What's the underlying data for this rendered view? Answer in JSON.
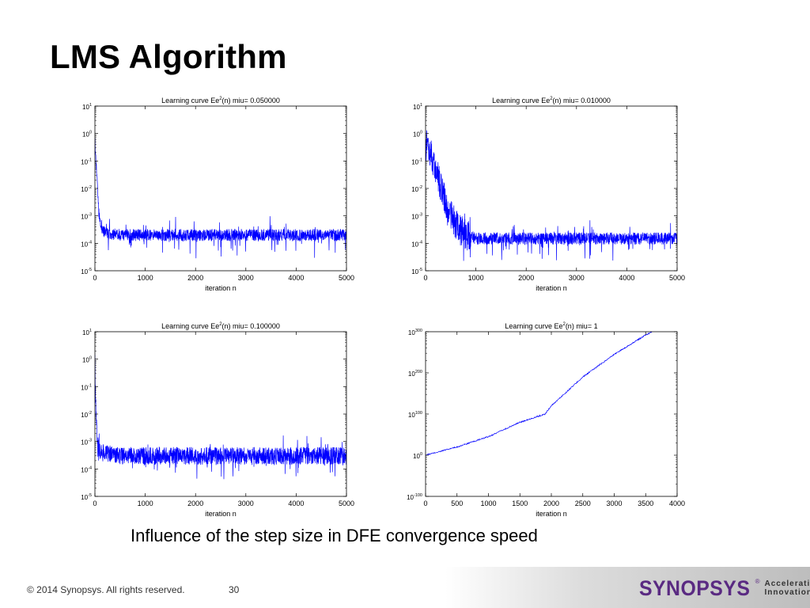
{
  "slide": {
    "title": "LMS Algorithm",
    "caption": "Influence of the step size in DFE convergence speed",
    "footer": {
      "copyright": "© 2014 Synopsys. All rights reserved.",
      "page_number": "30",
      "logo_text": "SYNOPSYS",
      "logo_registered": "®",
      "tagline_line1": "Accelerating",
      "tagline_line2": "Innovation"
    }
  },
  "colors": {
    "curve": "#0000ff",
    "logo": "#5a2a82"
  },
  "chart_data": [
    {
      "type": "line",
      "title_prefix": "Learning curve Ee",
      "title_sup": "2",
      "title_suffix": "(n) miu= 0.050000",
      "xlabel": "iteration n",
      "xlim": [
        0,
        5000
      ],
      "xticks": [
        "0",
        "1000",
        "2000",
        "3000",
        "4000",
        "5000"
      ],
      "ylim_exp": [
        -5,
        1
      ],
      "yscale": "log",
      "yticks": [
        {
          "base": "10",
          "exp": "1"
        },
        {
          "base": "10",
          "exp": "0"
        },
        {
          "base": "10",
          "exp": "-1"
        },
        {
          "base": "10",
          "exp": "-2"
        },
        {
          "base": "10",
          "exp": "-3"
        },
        {
          "base": "10",
          "exp": "-4"
        },
        {
          "base": "10",
          "exp": "-5"
        }
      ],
      "series": [
        {
          "points": [
            [
              1,
              0.5
            ],
            [
              30,
              0.05
            ],
            [
              80,
              0.0012
            ],
            [
              150,
              0.0003
            ],
            [
              300,
              0.0002
            ],
            [
              1000,
              0.0002
            ],
            [
              2000,
              0.0002
            ],
            [
              3000,
              0.0002
            ],
            [
              4000,
              0.0002
            ],
            [
              5000,
              0.0002
            ]
          ]
        }
      ]
    },
    {
      "type": "line",
      "title_prefix": "Learning curve Ee",
      "title_sup": "2",
      "title_suffix": "(n) miu= 0.010000",
      "xlabel": "iteration n",
      "xlim": [
        0,
        5000
      ],
      "xticks": [
        "0",
        "1000",
        "2000",
        "3000",
        "4000",
        "5000"
      ],
      "ylim_exp": [
        -5,
        1
      ],
      "yscale": "log",
      "yticks": [
        {
          "base": "10",
          "exp": "1"
        },
        {
          "base": "10",
          "exp": "0"
        },
        {
          "base": "10",
          "exp": "-1"
        },
        {
          "base": "10",
          "exp": "-2"
        },
        {
          "base": "10",
          "exp": "-3"
        },
        {
          "base": "10",
          "exp": "-4"
        },
        {
          "base": "10",
          "exp": "-5"
        }
      ],
      "series": [
        {
          "points": [
            [
              1,
              0.5
            ],
            [
              200,
              0.05
            ],
            [
              400,
              0.003
            ],
            [
              600,
              0.0005
            ],
            [
              800,
              0.0002
            ],
            [
              1000,
              0.00015
            ],
            [
              2000,
              0.00015
            ],
            [
              3000,
              0.00015
            ],
            [
              4000,
              0.00015
            ],
            [
              5000,
              0.00015
            ]
          ]
        }
      ]
    },
    {
      "type": "line",
      "title_prefix": "Learning curve Ee",
      "title_sup": "2",
      "title_suffix": "(n) miu= 0.100000",
      "xlabel": "iteration n",
      "xlim": [
        0,
        5000
      ],
      "xticks": [
        "0",
        "1000",
        "2000",
        "3000",
        "4000",
        "5000"
      ],
      "ylim_exp": [
        -5,
        1
      ],
      "yscale": "log",
      "yticks": [
        {
          "base": "10",
          "exp": "1"
        },
        {
          "base": "10",
          "exp": "0"
        },
        {
          "base": "10",
          "exp": "-1"
        },
        {
          "base": "10",
          "exp": "-2"
        },
        {
          "base": "10",
          "exp": "-3"
        },
        {
          "base": "10",
          "exp": "-4"
        },
        {
          "base": "10",
          "exp": "-5"
        }
      ],
      "series": [
        {
          "points": [
            [
              1,
              1
            ],
            [
              15,
              0.02
            ],
            [
              50,
              0.001
            ],
            [
              100,
              0.0004
            ],
            [
              500,
              0.0003
            ],
            [
              1000,
              0.0003
            ],
            [
              2000,
              0.0003
            ],
            [
              3000,
              0.0003
            ],
            [
              4000,
              0.0003
            ],
            [
              5000,
              0.0003
            ]
          ]
        }
      ]
    },
    {
      "type": "line",
      "title_prefix": "Learning curve Ee",
      "title_sup": "2",
      "title_suffix": "(n) miu=    1",
      "xlabel": "iteration n",
      "xlim": [
        0,
        4000
      ],
      "xticks": [
        "0",
        "500",
        "1000",
        "1500",
        "2000",
        "2500",
        "3000",
        "3500",
        "4000"
      ],
      "ylim_exp": [
        -100,
        300
      ],
      "yscale": "log",
      "yticks": [
        {
          "base": "10",
          "exp": "300"
        },
        {
          "base": "10",
          "exp": "200"
        },
        {
          "base": "10",
          "exp": "100"
        },
        {
          "base": "10",
          "exp": "0"
        },
        {
          "base": "10",
          "exp": "-100"
        }
      ],
      "series": [
        {
          "points_exp": [
            [
              0,
              0
            ],
            [
              500,
              20
            ],
            [
              1000,
              45
            ],
            [
              1500,
              80
            ],
            [
              1900,
              100
            ],
            [
              2000,
              120
            ],
            [
              2500,
              190
            ],
            [
              3000,
              245
            ],
            [
              3500,
              292
            ],
            [
              3600,
              300
            ]
          ]
        }
      ]
    }
  ]
}
